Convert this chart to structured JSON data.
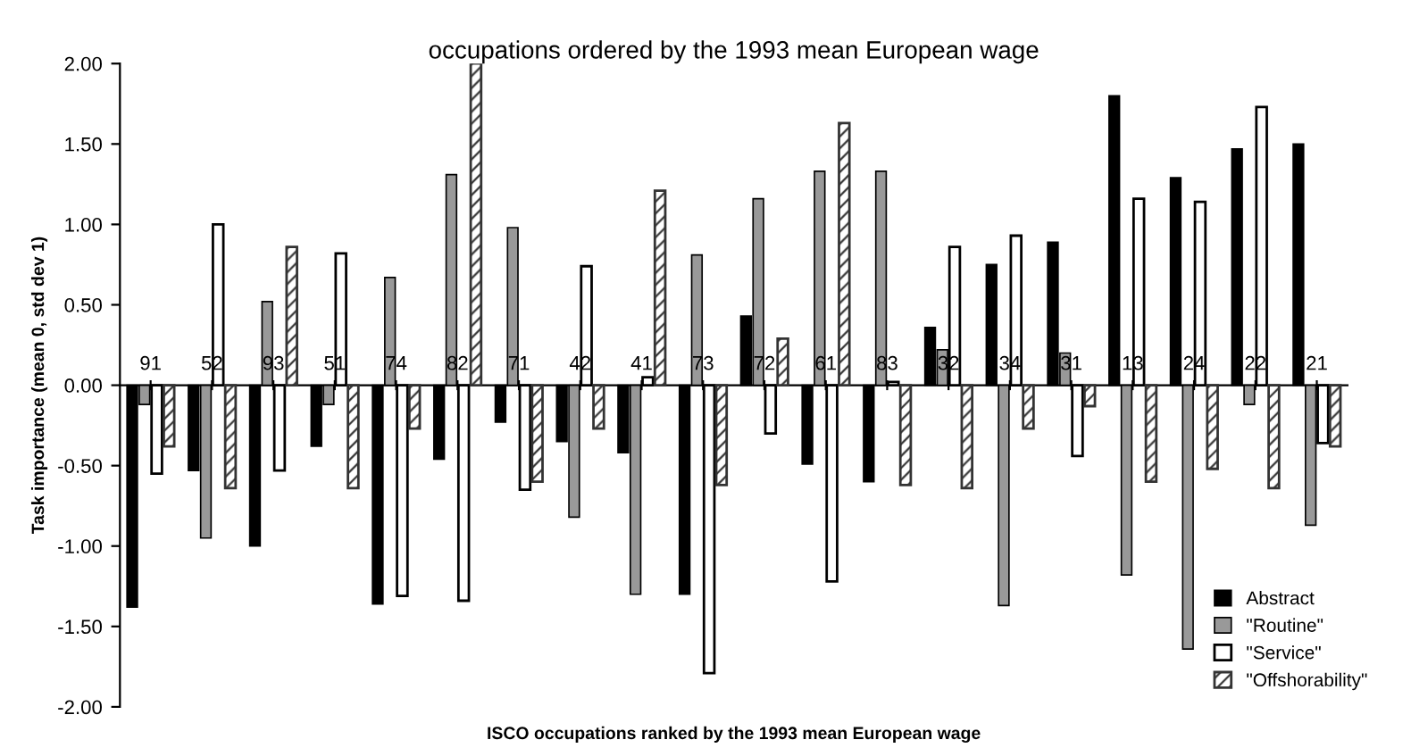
{
  "chart_data": {
    "type": "bar",
    "title": "occupations ordered by the 1993 mean European wage",
    "xlabel": "ISCO occupations ranked by the 1993 mean European wage",
    "ylabel": "Task importance (mean 0, std dev 1)",
    "categories": [
      "91",
      "52",
      "93",
      "51",
      "74",
      "82",
      "71",
      "42",
      "41",
      "73",
      "72",
      "61",
      "83",
      "32",
      "34",
      "31",
      "13",
      "24",
      "22",
      "21"
    ],
    "series": [
      {
        "name": "Abstract",
        "color": "#000000",
        "values": [
          -1.38,
          -0.53,
          -1.0,
          -0.38,
          -1.36,
          -0.46,
          -0.23,
          -0.35,
          -0.42,
          -1.3,
          0.43,
          -0.49,
          -0.6,
          0.36,
          0.75,
          0.89,
          1.8,
          1.29,
          1.47,
          1.5
        ]
      },
      {
        "name": "\"Routine\"",
        "color": "#999999",
        "values": [
          -0.12,
          -0.95,
          0.52,
          -0.12,
          0.67,
          1.31,
          0.98,
          -0.82,
          -1.3,
          0.81,
          1.16,
          1.33,
          1.33,
          0.22,
          -1.37,
          0.2,
          -1.18,
          -1.64,
          -0.12,
          -0.87
        ]
      },
      {
        "name": "\"Service\"",
        "color": "#ffffff",
        "values": [
          -0.55,
          1.0,
          -0.53,
          0.82,
          -1.31,
          -1.34,
          -0.65,
          0.74,
          0.05,
          -1.79,
          -0.3,
          -1.22,
          0.02,
          0.86,
          0.93,
          -0.44,
          1.16,
          1.14,
          1.73,
          -0.36
        ]
      },
      {
        "name": "\"Offshorability\"",
        "color": "#333333",
        "values": [
          -0.38,
          -0.64,
          0.86,
          -0.64,
          -0.27,
          2.0,
          -0.6,
          -0.27,
          1.21,
          -0.62,
          0.29,
          1.63,
          -0.62,
          -0.64,
          -0.27,
          -0.13,
          -0.6,
          -0.52,
          -0.64,
          -0.38
        ]
      }
    ],
    "ylim": [
      -2,
      2
    ],
    "yticks": [
      {
        "value": -2,
        "label": "-2.00"
      },
      {
        "value": -1.5,
        "label": "-1.50"
      },
      {
        "value": -1,
        "label": "-1.00"
      },
      {
        "value": -0.5,
        "label": "-0.50"
      },
      {
        "value": 0,
        "label": "0.00"
      },
      {
        "value": 0.5,
        "label": "0.50"
      },
      {
        "value": 1,
        "label": "1.00"
      },
      {
        "value": 1.5,
        "label": "1.50"
      },
      {
        "value": 2,
        "label": "2.00"
      }
    ],
    "grid": false,
    "legend": "bottom right"
  }
}
